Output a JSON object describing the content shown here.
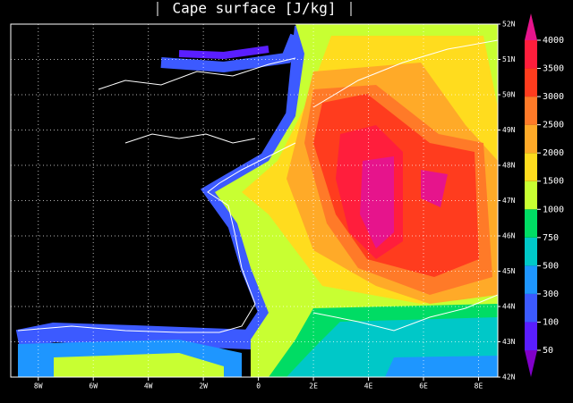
{
  "title": "Cape surface [J/kg]",
  "map": {
    "xlim": [
      -9,
      8.7
    ],
    "ylim": [
      42,
      52
    ],
    "xticks": [
      {
        "value": -8,
        "label": "8W"
      },
      {
        "value": -6,
        "label": "6W"
      },
      {
        "value": -4,
        "label": "4W"
      },
      {
        "value": -2,
        "label": "2W"
      },
      0,
      {
        "value": 2,
        "label": "2E"
      },
      {
        "value": 4,
        "label": "4E"
      },
      {
        "value": 6,
        "label": "6E"
      },
      {
        "value": 8,
        "label": "8E"
      }
    ],
    "yticks": [
      {
        "value": 42,
        "label": "42N"
      },
      {
        "value": 43,
        "label": "43N"
      },
      {
        "value": 44,
        "label": "44N"
      },
      {
        "value": 45,
        "label": "45N"
      },
      {
        "value": 46,
        "label": "46N"
      },
      {
        "value": 47,
        "label": "47N"
      },
      {
        "value": 48,
        "label": "48N"
      },
      {
        "value": 49,
        "label": "49N"
      },
      {
        "value": 50,
        "label": "50N"
      },
      {
        "value": 51,
        "label": "51N"
      },
      {
        "value": 52,
        "label": "52N"
      }
    ],
    "grid": true
  },
  "colorbar": {
    "levels": [
      50,
      100,
      300,
      500,
      750,
      1000,
      1500,
      2000,
      2500,
      3000,
      3500,
      4000
    ],
    "colors": [
      "#8000c8",
      "#5a1eff",
      "#3c5aff",
      "#1e96ff",
      "#00c8c8",
      "#00dc64",
      "#c8ff32",
      "#ffdc1e",
      "#ffaa28",
      "#ff7a28",
      "#ff3c1e",
      "#ff1e3c",
      "#e6148c"
    ]
  }
}
